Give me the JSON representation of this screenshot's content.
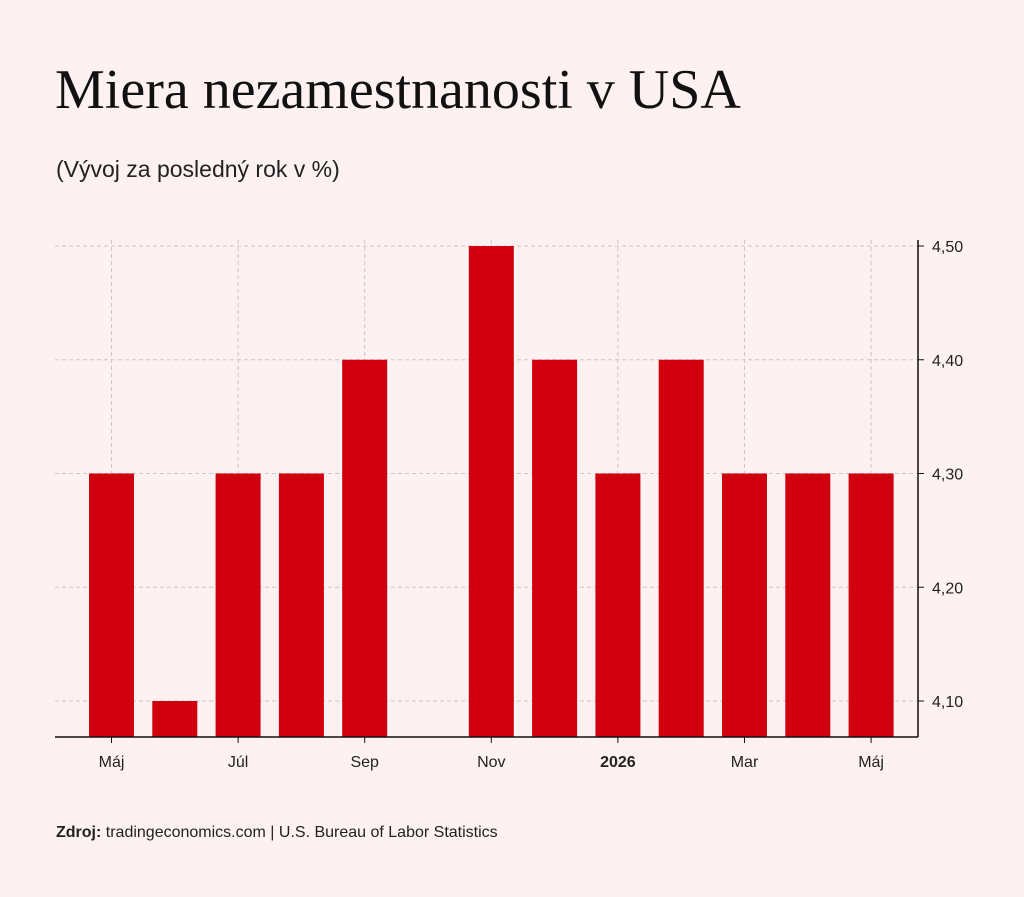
{
  "title": "Miera nezamestnanosti v USA",
  "subtitle": "(Vývoj za posledný rok v %)",
  "source": {
    "label": "Zdroj:",
    "text": " tradingeconomics.com | U.S. Bureau of Labor Statistics"
  },
  "colors": {
    "bar": "#d0000f",
    "background": "#fdf1f1",
    "grid": "#c8c8c8",
    "axis": "#111111"
  },
  "chart_data": {
    "type": "bar",
    "title": "Miera nezamestnanosti v USA",
    "subtitle": "(Vývoj za posledný rok v %)",
    "xlabel": "",
    "ylabel": "",
    "y_axis_position": "right",
    "grid": true,
    "ylim": [
      4.07,
      4.5
    ],
    "yticks": [
      4.1,
      4.2,
      4.3,
      4.4,
      4.5
    ],
    "ytick_labels": [
      "4,10",
      "4,20",
      "4,30",
      "4,40",
      "4,50"
    ],
    "categories": [
      "2025-05",
      "2025-06",
      "2025-07",
      "2025-08",
      "2025-09",
      "2025-10",
      "2025-11",
      "2025-12",
      "2026-01",
      "2026-02",
      "2026-03",
      "2026-04",
      "2026-05"
    ],
    "values": [
      4.3,
      4.1,
      4.3,
      4.3,
      4.4,
      null,
      4.5,
      4.4,
      4.3,
      4.4,
      4.3,
      4.3,
      4.3
    ],
    "xticks": [
      {
        "index": 0,
        "label": "Máj",
        "bold": false
      },
      {
        "index": 2,
        "label": "Júl",
        "bold": false
      },
      {
        "index": 4,
        "label": "Sep",
        "bold": false
      },
      {
        "index": 6,
        "label": "Nov",
        "bold": false
      },
      {
        "index": 8,
        "label": "2026",
        "bold": true
      },
      {
        "index": 10,
        "label": "Mar",
        "bold": false
      },
      {
        "index": 12,
        "label": "Máj",
        "bold": false
      }
    ]
  }
}
